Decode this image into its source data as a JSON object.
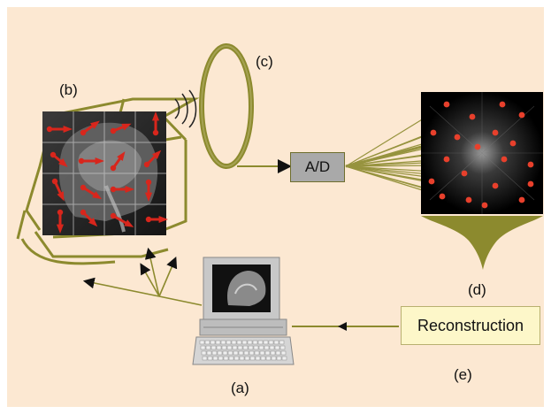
{
  "labels": {
    "a": "(a)",
    "b": "(b)",
    "c": "(c)",
    "d": "(d)",
    "e": "(e)"
  },
  "boxes": {
    "ad": "A/D",
    "reconstruction": "Reconstruction"
  },
  "colors": {
    "background": "#fce8d2",
    "wire": "#8c8a2e",
    "arrow": "#d8261c",
    "box_ad": "#a9a9a9",
    "box_reconstruction": "#fdf7c9"
  },
  "icons": [
    "brain-mri-slice",
    "receive-coil",
    "computer-terminal",
    "k-space-image"
  ]
}
